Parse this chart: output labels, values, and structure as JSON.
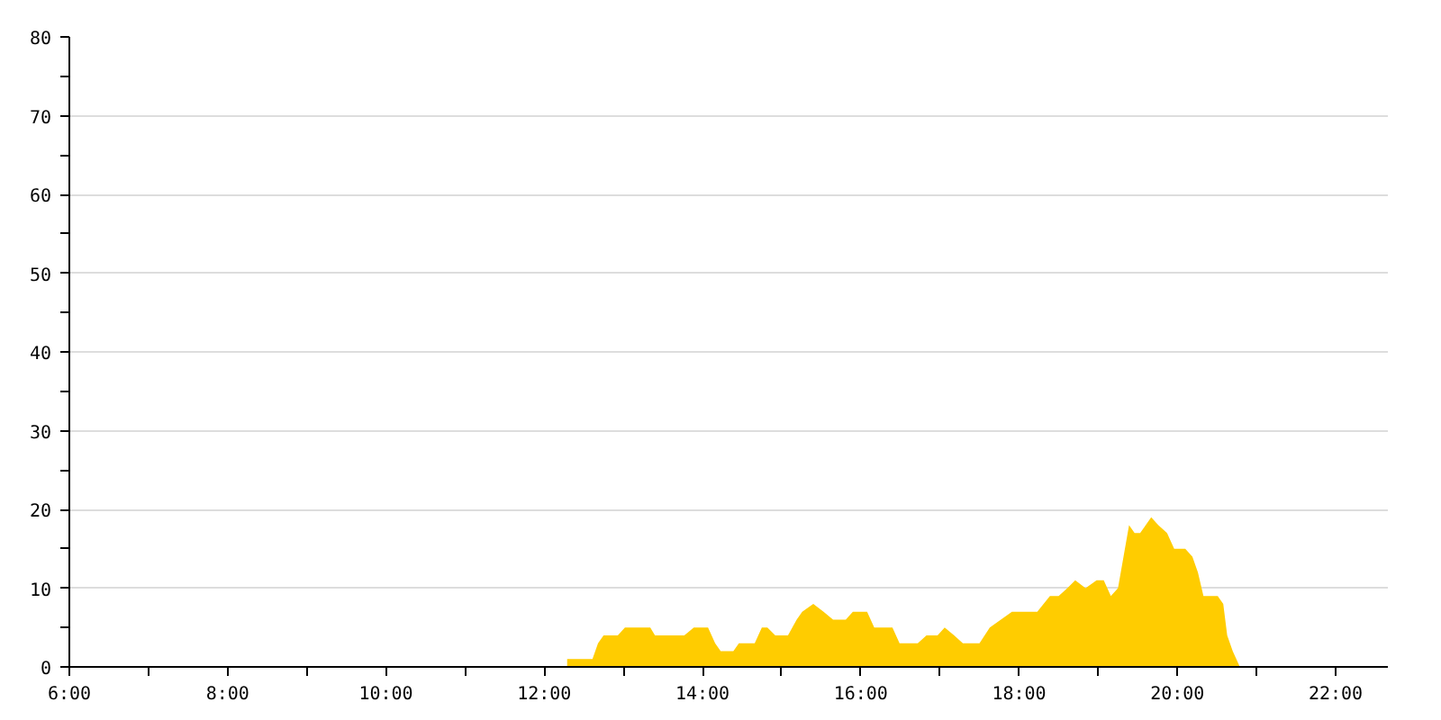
{
  "chart_data": {
    "type": "area",
    "x": [
      12.29,
      12.43,
      12.61,
      12.68,
      12.75,
      12.93,
      13.02,
      13.34,
      13.4,
      13.77,
      13.89,
      14.07,
      14.16,
      14.23,
      14.39,
      14.46,
      14.66,
      14.75,
      14.82,
      14.92,
      15.08,
      15.19,
      15.26,
      15.4,
      15.53,
      15.65,
      15.81,
      15.9,
      16.08,
      16.17,
      16.4,
      16.49,
      16.72,
      16.83,
      16.97,
      17.06,
      17.18,
      17.29,
      17.5,
      17.63,
      17.77,
      17.91,
      18.23,
      18.39,
      18.5,
      18.61,
      18.71,
      18.84,
      18.98,
      19.07,
      19.16,
      19.25,
      19.32,
      19.39,
      19.46,
      19.53,
      19.6,
      19.67,
      19.76,
      19.87,
      19.96,
      20.1,
      20.19,
      20.26,
      20.33,
      20.51,
      20.58,
      20.63,
      20.7,
      20.79
    ],
    "series": [
      {
        "color": "#ffcc00",
        "values": [
          1,
          1,
          1,
          3,
          4,
          4,
          5,
          5,
          4,
          4,
          5,
          5,
          3,
          2,
          2,
          3,
          3,
          5,
          5,
          4,
          4,
          6,
          7,
          8,
          7,
          6,
          6,
          7,
          7,
          5,
          5,
          3,
          3,
          4,
          4,
          5,
          4,
          3,
          3,
          5,
          6,
          7,
          7,
          9,
          9,
          10,
          11,
          10,
          11,
          11,
          9,
          10,
          14,
          18,
          17,
          17,
          18,
          19,
          18,
          17,
          15,
          15,
          14,
          12,
          9,
          9,
          8,
          4,
          2,
          0
        ]
      }
    ],
    "xlim": [
      6,
      22.66
    ],
    "xticks": [
      {
        "value": 6,
        "label": "6:00"
      },
      {
        "value": 7,
        "label": null
      },
      {
        "value": 8,
        "label": "8:00"
      },
      {
        "value": 9,
        "label": null
      },
      {
        "value": 10,
        "label": "10:00"
      },
      {
        "value": 11,
        "label": null
      },
      {
        "value": 12,
        "label": "12:00"
      },
      {
        "value": 13,
        "label": null
      },
      {
        "value": 14,
        "label": "14:00"
      },
      {
        "value": 15,
        "label": null
      },
      {
        "value": 16,
        "label": "16:00"
      },
      {
        "value": 17,
        "label": null
      },
      {
        "value": 18,
        "label": "18:00"
      },
      {
        "value": 19,
        "label": null
      },
      {
        "value": 20,
        "label": "20:00"
      },
      {
        "value": 21,
        "label": null
      },
      {
        "value": 22,
        "label": "22:00"
      }
    ],
    "ylim": [
      0,
      80
    ],
    "yticks": [
      0,
      {
        "value": 5,
        "label": null
      },
      10,
      {
        "value": 15,
        "label": null
      },
      20,
      {
        "value": 25,
        "label": null
      },
      30,
      {
        "value": 35,
        "label": null
      },
      40,
      {
        "value": 45,
        "label": null
      },
      50,
      {
        "value": 55,
        "label": null
      },
      60,
      {
        "value": 65,
        "label": null
      },
      70,
      {
        "value": 75,
        "label": null
      },
      80
    ],
    "grid": "y"
  }
}
